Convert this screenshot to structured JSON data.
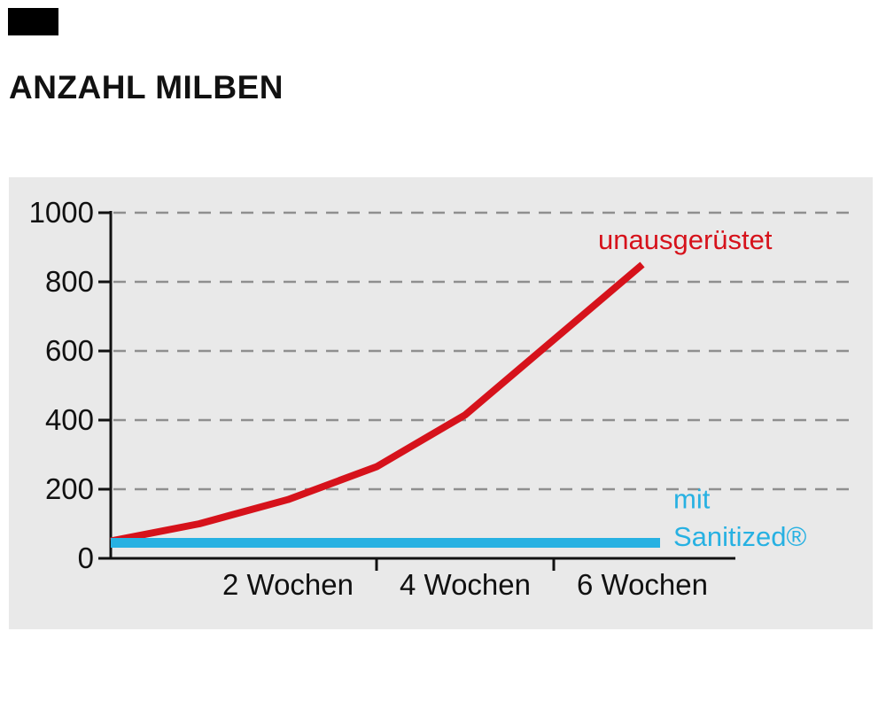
{
  "title": "ANZAHL MILBEN",
  "chart_data": {
    "type": "line",
    "title": "ANZAHL MILBEN",
    "x_unit": "Wochen",
    "xlim": [
      0,
      6.2
    ],
    "ylim": [
      0,
      1000
    ],
    "grid": "dashed horizontal",
    "grid_color": "#8f8f8f",
    "y_ticks": [
      0,
      200,
      400,
      600,
      800,
      1000
    ],
    "x_ticks": [
      {
        "week": 2,
        "label": "2 Wochen"
      },
      {
        "week": 4,
        "label": "4 Wochen"
      },
      {
        "week": 6,
        "label": "6 Wochen"
      }
    ],
    "x_axis_tick_marks": [
      3,
      5
    ],
    "series": [
      {
        "id": "unausgeruestet",
        "name": "unausgerüstet",
        "color": "#d6121b",
        "width": 8,
        "points": [
          [
            0,
            50
          ],
          [
            1,
            100
          ],
          [
            2,
            170
          ],
          [
            3,
            265
          ],
          [
            4,
            415
          ],
          [
            6,
            850
          ]
        ]
      },
      {
        "id": "mit-sanitized",
        "name": "mit Sanitized®",
        "color": "#27b1e2",
        "width": 11,
        "points": [
          [
            0,
            45
          ],
          [
            6.2,
            45
          ]
        ]
      }
    ],
    "annotations": [
      {
        "id": "unausgeruestet-label",
        "text": "unausgerüstet",
        "color": "#d6121b",
        "week": 5.5,
        "value": 895
      },
      {
        "id": "mit-label-line1",
        "text": "mit",
        "color": "#27b1e2",
        "week": 6.35,
        "value": 145
      },
      {
        "id": "mit-label-line2",
        "text": "Sanitized®",
        "color": "#27b1e2",
        "week": 6.35,
        "value": 36
      }
    ]
  }
}
